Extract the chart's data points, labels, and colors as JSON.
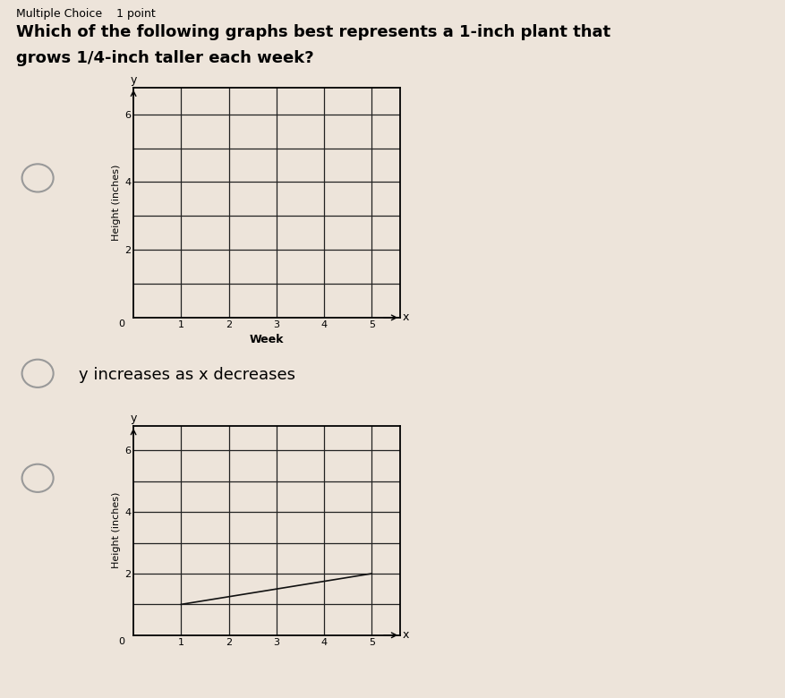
{
  "title_line1": "Which of the following graphs best represents a 1-inch plant that",
  "title_line2": "grows 1/4-inch taller each week?",
  "header": "Multiple Choice    1 point",
  "background_color": "#ede4da",
  "graph1": {
    "xlabel": "Week",
    "ylabel": "Height (inches)",
    "xlim": [
      0,
      5.6
    ],
    "ylim": [
      0,
      6.8
    ],
    "xticks": [
      1,
      2,
      3,
      4,
      5
    ],
    "yticks": [
      2,
      4,
      6
    ],
    "grid_yticks": [
      1,
      2,
      3,
      4,
      5,
      6
    ],
    "has_line": false,
    "grid_color": "#222222",
    "grid_linewidth": 0.9
  },
  "option2_text": "y increases as x decreases",
  "graph2": {
    "xlabel": "",
    "ylabel": "Height (inches)",
    "xlim": [
      0,
      5.6
    ],
    "ylim": [
      0,
      6.8
    ],
    "xticks": [
      1,
      2,
      3,
      4,
      5
    ],
    "yticks": [
      2,
      4,
      6
    ],
    "grid_yticks": [
      1,
      2,
      3,
      4,
      5,
      6
    ],
    "has_line": true,
    "line_x": [
      1,
      5
    ],
    "line_y": [
      1.0,
      2.0
    ],
    "line_color": "#111111",
    "line_linewidth": 1.2,
    "grid_color": "#222222",
    "grid_linewidth": 0.9
  },
  "text_color": "#000000",
  "font_size_header": 9,
  "font_size_title": 13,
  "font_size_option": 13,
  "font_size_axis_label": 8,
  "font_size_tick": 8,
  "font_size_xy_label": 9
}
